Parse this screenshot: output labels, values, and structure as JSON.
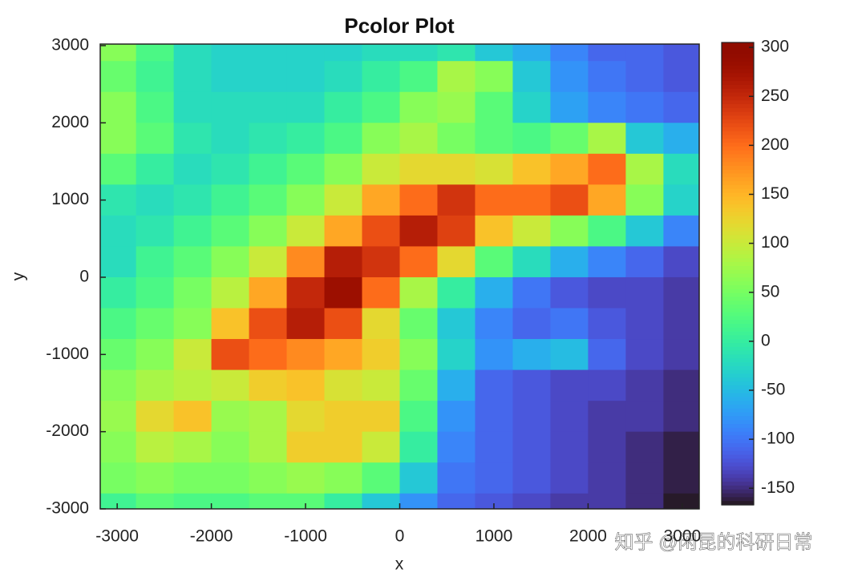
{
  "chart_data": {
    "type": "pcolor",
    "title": "Pcolor Plot",
    "xlabel": "x",
    "ylabel": "y",
    "watermark": "知乎 @闲昆的科研日常",
    "colormap": "turbo",
    "x": [
      -3000,
      -2600,
      -2200,
      -1800,
      -1400,
      -1000,
      -600,
      -200,
      200,
      600,
      1000,
      1400,
      1800,
      2200,
      2600,
      3000
    ],
    "y": [
      3000,
      2600,
      2200,
      1800,
      1400,
      1000,
      600,
      200,
      -200,
      -600,
      -1000,
      -1400,
      -1800,
      -2200,
      -2600,
      -3000
    ],
    "z": [
      [
        60,
        20,
        -20,
        -30,
        -30,
        -30,
        -30,
        -20,
        -20,
        -10,
        -40,
        -60,
        -90,
        -110,
        -110,
        -120
      ],
      [
        40,
        10,
        -20,
        -30,
        -30,
        -30,
        -20,
        0,
        20,
        80,
        60,
        -40,
        -80,
        -100,
        -110,
        -120
      ],
      [
        60,
        20,
        -20,
        -20,
        -20,
        -20,
        0,
        20,
        60,
        70,
        30,
        -30,
        -70,
        -90,
        -100,
        -110
      ],
      [
        60,
        30,
        -10,
        -20,
        -10,
        0,
        20,
        60,
        80,
        50,
        30,
        20,
        40,
        80,
        -40,
        -60
      ],
      [
        30,
        0,
        -20,
        -10,
        10,
        30,
        60,
        100,
        120,
        120,
        110,
        140,
        160,
        200,
        80,
        -20
      ],
      [
        -10,
        -20,
        -10,
        10,
        30,
        60,
        100,
        160,
        200,
        240,
        200,
        200,
        220,
        160,
        60,
        -30
      ],
      [
        -20,
        -10,
        10,
        30,
        60,
        100,
        160,
        220,
        260,
        230,
        140,
        100,
        60,
        20,
        -40,
        -90
      ],
      [
        -20,
        10,
        30,
        60,
        100,
        180,
        260,
        240,
        200,
        120,
        30,
        -20,
        -60,
        -90,
        -110,
        -130
      ],
      [
        0,
        20,
        50,
        90,
        160,
        250,
        280,
        200,
        80,
        0,
        -60,
        -100,
        -120,
        -130,
        -130,
        -140
      ],
      [
        20,
        40,
        60,
        140,
        220,
        260,
        220,
        120,
        40,
        -40,
        -90,
        -110,
        -100,
        -120,
        -130,
        -140
      ],
      [
        40,
        60,
        100,
        220,
        200,
        180,
        160,
        130,
        60,
        -30,
        -80,
        -60,
        -50,
        -110,
        -130,
        -140
      ],
      [
        60,
        80,
        90,
        100,
        130,
        140,
        110,
        100,
        40,
        -60,
        -110,
        -120,
        -130,
        -130,
        -140,
        -150
      ],
      [
        70,
        120,
        140,
        70,
        80,
        120,
        130,
        130,
        20,
        -80,
        -110,
        -120,
        -130,
        -140,
        -140,
        -150
      ],
      [
        60,
        90,
        80,
        60,
        80,
        130,
        130,
        100,
        0,
        -90,
        -110,
        -120,
        -130,
        -140,
        -150,
        -160
      ],
      [
        50,
        60,
        50,
        50,
        60,
        70,
        60,
        30,
        -40,
        -100,
        -110,
        -120,
        -130,
        -140,
        -150,
        -160
      ],
      [
        10,
        30,
        20,
        20,
        30,
        30,
        0,
        -40,
        -80,
        -110,
        -120,
        -130,
        -140,
        -140,
        -150,
        -165
      ]
    ],
    "xlim": [
      -3180,
      3180
    ],
    "ylim": [
      -3000,
      3020
    ],
    "xticks": [
      -3000,
      -2000,
      -1000,
      0,
      1000,
      2000,
      3000
    ],
    "yticks": [
      -3000,
      -2000,
      -1000,
      0,
      1000,
      2000,
      3000
    ],
    "clim": [
      -167,
      305
    ],
    "cticks": [
      -150,
      -100,
      -50,
      0,
      50,
      100,
      150,
      200,
      250,
      300
    ]
  }
}
